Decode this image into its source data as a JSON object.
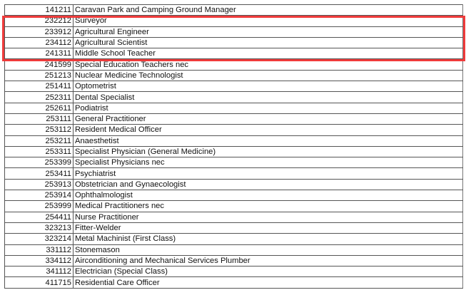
{
  "highlight_color": "#ef3b3b",
  "rows": [
    {
      "code": "141211",
      "occupation": "Caravan Park and Camping Ground Manager"
    },
    {
      "code": "232212",
      "occupation": "Surveyor"
    },
    {
      "code": "233912",
      "occupation": "Agricultural Engineer"
    },
    {
      "code": "234112",
      "occupation": "Agricultural Scientist"
    },
    {
      "code": "241311",
      "occupation": "Middle School Teacher"
    },
    {
      "code": "241599",
      "occupation": "Special Education Teachers nec"
    },
    {
      "code": "251213",
      "occupation": "Nuclear Medicine Technologist"
    },
    {
      "code": "251411",
      "occupation": "Optometrist"
    },
    {
      "code": "252311",
      "occupation": "Dental Specialist"
    },
    {
      "code": "252611",
      "occupation": "Podiatrist"
    },
    {
      "code": "253111",
      "occupation": "General Practitioner"
    },
    {
      "code": "253112",
      "occupation": "Resident Medical Officer"
    },
    {
      "code": "253211",
      "occupation": "Anaesthetist"
    },
    {
      "code": "253311",
      "occupation": "Specialist Physician (General Medicine)"
    },
    {
      "code": "253399",
      "occupation": "Specialist Physicians nec"
    },
    {
      "code": "253411",
      "occupation": "Psychiatrist"
    },
    {
      "code": "253913",
      "occupation": "Obstetrician and Gynaecologist"
    },
    {
      "code": "253914",
      "occupation": "Ophthalmologist"
    },
    {
      "code": "253999",
      "occupation": "Medical Practitioners nec"
    },
    {
      "code": "254411",
      "occupation": "Nurse Practitioner"
    },
    {
      "code": "323213",
      "occupation": "Fitter-Welder"
    },
    {
      "code": "323214",
      "occupation": "Metal Machinist (First Class)"
    },
    {
      "code": "331112",
      "occupation": "Stonemason"
    },
    {
      "code": "334112",
      "occupation": "Airconditioning and Mechanical Services Plumber"
    },
    {
      "code": "341112",
      "occupation": "Electrician (Special Class)"
    },
    {
      "code": "411715",
      "occupation": "Residential Care Officer"
    }
  ]
}
